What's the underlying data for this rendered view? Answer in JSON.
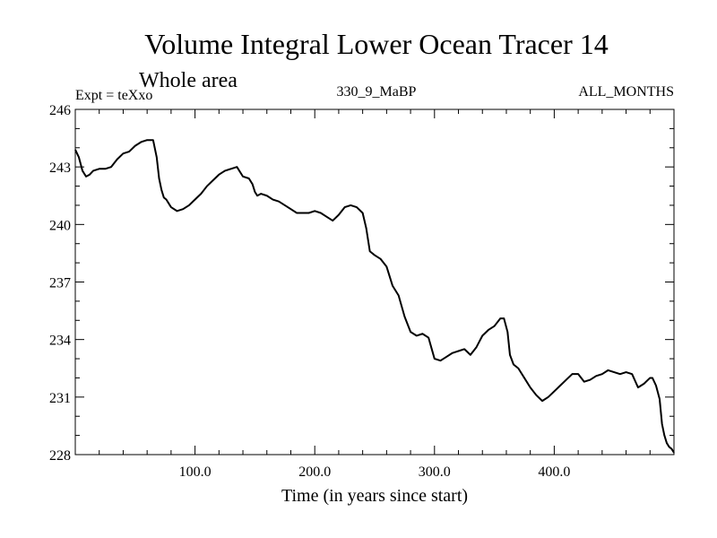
{
  "chart_data": {
    "type": "line",
    "title": "Volume Integral Lower Ocean Tracer 14",
    "subtitle": "Whole area",
    "left_label": "Expt = teXxo",
    "center_label": "330_9_MaBP",
    "right_label": "ALL_MONTHS",
    "xlabel": "Time (in years since start)",
    "ylabel": "",
    "xlim": [
      0,
      500
    ],
    "ylim": [
      228,
      246
    ],
    "x_ticks": [
      100,
      200,
      300,
      400
    ],
    "x_tick_labels": [
      "100.0",
      "200.0",
      "300.0",
      "400.0"
    ],
    "y_ticks": [
      228,
      231,
      234,
      237,
      240,
      243,
      246
    ],
    "y_tick_labels": [
      "228",
      "231",
      "234",
      "237",
      "240",
      "243",
      "246"
    ],
    "grid": false,
    "series": [
      {
        "name": "Volume Integral Lower Ocean Tracer 14",
        "color": "#000000",
        "x": [
          0,
          3,
          6,
          9,
          12,
          15,
          20,
          25,
          30,
          35,
          40,
          45,
          50,
          55,
          60,
          65,
          68,
          70,
          72,
          74,
          76,
          78,
          80,
          85,
          90,
          95,
          100,
          105,
          110,
          115,
          120,
          125,
          130,
          135,
          140,
          145,
          148,
          150,
          152,
          155,
          160,
          165,
          170,
          175,
          180,
          185,
          190,
          195,
          200,
          205,
          210,
          215,
          220,
          225,
          230,
          235,
          240,
          243,
          246,
          250,
          255,
          260,
          265,
          270,
          275,
          280,
          285,
          290,
          295,
          300,
          305,
          310,
          315,
          320,
          325,
          330,
          335,
          340,
          345,
          350,
          355,
          358,
          361,
          363,
          366,
          370,
          375,
          380,
          385,
          390,
          395,
          400,
          405,
          410,
          415,
          420,
          425,
          430,
          435,
          440,
          445,
          450,
          455,
          460,
          465,
          470,
          475,
          480,
          482,
          485,
          488,
          490,
          492,
          494,
          496,
          498,
          500
        ],
        "values": [
          243.9,
          243.5,
          242.8,
          242.5,
          242.6,
          242.8,
          242.9,
          242.9,
          243.0,
          243.4,
          243.7,
          243.8,
          244.1,
          244.3,
          244.4,
          244.4,
          243.5,
          242.4,
          241.8,
          241.4,
          241.3,
          241.1,
          240.9,
          240.7,
          240.8,
          241.0,
          241.3,
          241.6,
          242.0,
          242.3,
          242.6,
          242.8,
          242.9,
          243.0,
          242.5,
          242.4,
          242.1,
          241.7,
          241.5,
          241.6,
          241.5,
          241.3,
          241.2,
          241.0,
          240.8,
          240.6,
          240.6,
          240.6,
          240.7,
          240.6,
          240.4,
          240.2,
          240.5,
          240.9,
          241.0,
          240.9,
          240.6,
          239.8,
          238.6,
          238.4,
          238.2,
          237.8,
          236.8,
          236.3,
          235.2,
          234.4,
          234.2,
          234.3,
          234.1,
          233.0,
          232.9,
          233.1,
          233.3,
          233.4,
          233.5,
          233.2,
          233.6,
          234.2,
          234.5,
          234.7,
          235.1,
          235.1,
          234.4,
          233.2,
          232.7,
          232.5,
          232.0,
          231.5,
          231.1,
          230.8,
          231.0,
          231.3,
          231.6,
          231.9,
          232.2,
          232.2,
          231.8,
          231.9,
          232.1,
          232.2,
          232.4,
          232.3,
          232.2,
          232.3,
          232.2,
          231.5,
          231.7,
          232.0,
          232.0,
          231.6,
          230.9,
          229.6,
          229.0,
          228.6,
          228.4,
          228.3,
          228.1
        ]
      }
    ]
  }
}
